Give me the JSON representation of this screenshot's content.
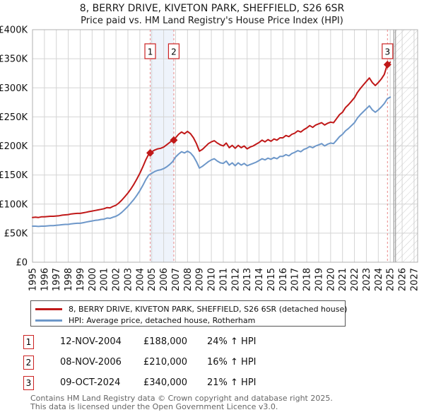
{
  "title": "8, BERRY DRIVE, KIVETON PARK, SHEFFIELD, S26 6SR",
  "subtitle": "Price paid vs. HM Land Registry's House Price Index (HPI)",
  "colors": {
    "property_line": "#c01818",
    "hpi_line": "#6d97c9",
    "grid": "#d4d4d4",
    "plot_border": "#b0b0b0",
    "shaded_band": "#eef3fb",
    "sale_dashed_line": "#e98a8a",
    "marker_box_border": "#cc2222",
    "hatch": "#cccccc",
    "future_boundary": "#888888"
  },
  "chart_data": {
    "type": "line",
    "title": "Price paid vs. HM Land Registry's House Price Index (HPI)",
    "xlabel": "",
    "ylabel": "",
    "x_axis": {
      "min": 1995,
      "max": 2027.3,
      "ticks": [
        1995,
        1996,
        1997,
        1998,
        1999,
        2000,
        2001,
        2002,
        2003,
        2004,
        2005,
        2006,
        2007,
        2008,
        2009,
        2010,
        2011,
        2012,
        2013,
        2014,
        2015,
        2016,
        2017,
        2018,
        2019,
        2020,
        2021,
        2022,
        2023,
        2024,
        2025,
        2026,
        2027
      ]
    },
    "y_axis": {
      "min": 0,
      "max": 400000,
      "ticks": [
        {
          "v": 0,
          "label": "£0"
        },
        {
          "v": 50000,
          "label": "£50K"
        },
        {
          "v": 100000,
          "label": "£100K"
        },
        {
          "v": 150000,
          "label": "£150K"
        },
        {
          "v": 200000,
          "label": "£200K"
        },
        {
          "v": 250000,
          "label": "£250K"
        },
        {
          "v": 300000,
          "label": "£300K"
        },
        {
          "v": 350000,
          "label": "£350K"
        },
        {
          "v": 400000,
          "label": "£400K"
        }
      ]
    },
    "grid": true,
    "legend_position": "bottom",
    "y_unit": "GBP thousands",
    "series": [
      {
        "name": "8, BERRY DRIVE, KIVETON PARK, SHEFFIELD, S26 6SR (detached house)",
        "color": "#c01818",
        "x_start": 1995,
        "x_step": 0.25,
        "values_k": [
          77,
          77.5,
          77,
          78,
          78,
          78.5,
          79,
          79,
          79.5,
          80,
          81,
          81.5,
          82,
          83,
          83.5,
          84,
          84,
          85,
          86,
          87,
          88,
          89,
          90,
          91,
          92,
          94,
          93.5,
          96,
          98,
          102,
          107,
          113,
          119,
          126,
          134,
          143,
          153,
          164,
          176,
          186,
          190,
          193,
          195,
          196,
          198,
          202,
          206,
          210,
          214,
          220,
          224,
          221,
          225,
          221,
          214,
          204,
          191,
          194,
          199,
          204,
          207,
          209,
          205,
          202,
          200,
          205,
          197,
          201,
          196,
          201,
          197,
          200,
          195,
          198,
          200,
          203,
          206,
          210,
          207,
          211,
          208,
          212,
          210,
          214,
          214,
          218,
          216,
          220,
          222,
          226,
          224,
          228,
          231,
          235,
          232,
          236,
          238,
          240,
          236,
          239,
          241,
          240,
          247,
          254,
          258,
          266,
          271,
          277,
          283,
          292,
          299,
          305,
          311,
          317,
          309,
          304,
          309,
          315,
          323,
          340,
          344
        ]
      },
      {
        "name": "HPI: Average price, detached house, Rotherham",
        "color": "#6d97c9",
        "x_start": 1995,
        "x_step": 0.25,
        "values_k": [
          62,
          62,
          61.5,
          62,
          62,
          62.5,
          63,
          63,
          63.5,
          64,
          64.5,
          65,
          65,
          66,
          66.5,
          67,
          67,
          68,
          69,
          70,
          71,
          72,
          72.5,
          73.5,
          74,
          76,
          75.5,
          77.5,
          79,
          82,
          86,
          91,
          96,
          102,
          108,
          115,
          123,
          132,
          142,
          150,
          153,
          156,
          158,
          159,
          161,
          164,
          168,
          173,
          181,
          186,
          190,
          188,
          191,
          188,
          182,
          173,
          162,
          165,
          169,
          173,
          176,
          178,
          174,
          171,
          170,
          174,
          167,
          171,
          166,
          171,
          167,
          170,
          166,
          168,
          170,
          172,
          175,
          178,
          176,
          179,
          177,
          180,
          178,
          182,
          182,
          185,
          183,
          187,
          189,
          192,
          190,
          194,
          196,
          199,
          197,
          200,
          202,
          204,
          200,
          203,
          205,
          204,
          210,
          216,
          220,
          226,
          230,
          235,
          240,
          248,
          254,
          259,
          264,
          269,
          262,
          258,
          262,
          267,
          273,
          281,
          284
        ]
      }
    ],
    "sales": [
      {
        "label": "1",
        "date": "12-NOV-2004",
        "x": 2004.87,
        "price_k": 188,
        "vs_hpi": "24% ↑ HPI"
      },
      {
        "label": "2",
        "date": "08-NOV-2006",
        "x": 2006.85,
        "price_k": 210,
        "vs_hpi": "16% ↑ HPI"
      },
      {
        "label": "3",
        "date": "09-OCT-2024",
        "x": 2024.77,
        "price_k": 340,
        "vs_hpi": "21% ↑ HPI"
      }
    ],
    "shaded_span": [
      2004.87,
      2006.85
    ],
    "future_hatch_start": 2025.3
  },
  "legend": {
    "items": [
      {
        "label": "8, BERRY DRIVE, KIVETON PARK, SHEFFIELD, S26 6SR (detached house)"
      },
      {
        "label": "HPI: Average price, detached house, Rotherham"
      }
    ]
  },
  "table": {
    "rows": [
      {
        "marker": "1",
        "date": "12-NOV-2004",
        "price": "£188,000",
        "hpi": "24% ↑ HPI"
      },
      {
        "marker": "2",
        "date": "08-NOV-2006",
        "price": "£210,000",
        "hpi": "16% ↑ HPI"
      },
      {
        "marker": "3",
        "date": "09-OCT-2024",
        "price": "£340,000",
        "hpi": "21% ↑ HPI"
      }
    ]
  },
  "footer": {
    "line1": "Contains HM Land Registry data © Crown copyright and database right 2025.",
    "line2": "This data is licensed under the Open Government Licence v3.0."
  }
}
